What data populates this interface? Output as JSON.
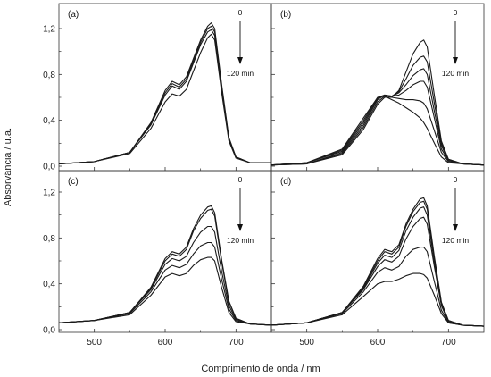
{
  "chart_data": {
    "type": "line",
    "ylabel": "Absorvância / u.a.",
    "xlabel": "Comprimento de onda / nm",
    "xlim": [
      450,
      750
    ],
    "ylim": [
      0,
      1.34
    ],
    "xticks": [
      "500",
      "600",
      "700"
    ],
    "yticks": [
      "0,0",
      "0,4",
      "0,8",
      "1,2"
    ],
    "xtick_values": [
      500,
      600,
      700
    ],
    "ytick_values": [
      0,
      0.4,
      0.8,
      1.2
    ],
    "panels": [
      {
        "label": "(a)",
        "annotation": {
          "start": "0",
          "end": "120 min"
        },
        "series": [
          {
            "x": [
              450,
              500,
              550,
              580,
              600,
              610,
              620,
              630,
              640,
              650,
              660,
              665,
              670,
              680,
              690,
              700,
              720,
              750
            ],
            "y": [
              0.02,
              0.04,
              0.12,
              0.38,
              0.66,
              0.74,
              0.71,
              0.78,
              0.94,
              1.1,
              1.22,
              1.25,
              1.2,
              0.7,
              0.25,
              0.08,
              0.03,
              0.03
            ]
          },
          {
            "x": [
              450,
              500,
              550,
              580,
              600,
              610,
              620,
              630,
              640,
              650,
              660,
              665,
              670,
              680,
              690,
              700,
              720,
              750
            ],
            "y": [
              0.02,
              0.04,
              0.12,
              0.37,
              0.64,
              0.72,
              0.69,
              0.76,
              0.92,
              1.08,
              1.2,
              1.22,
              1.17,
              0.68,
              0.24,
              0.08,
              0.03,
              0.03
            ]
          },
          {
            "x": [
              450,
              500,
              550,
              580,
              600,
              610,
              620,
              630,
              640,
              650,
              660,
              665,
              670,
              680,
              690,
              700,
              720,
              750
            ],
            "y": [
              0.02,
              0.04,
              0.12,
              0.36,
              0.62,
              0.7,
              0.67,
              0.74,
              0.9,
              1.06,
              1.17,
              1.19,
              1.14,
              0.66,
              0.23,
              0.08,
              0.03,
              0.03
            ]
          },
          {
            "x": [
              450,
              500,
              550,
              580,
              600,
              610,
              620,
              630,
              640,
              650,
              660,
              665,
              670,
              680,
              690,
              700,
              720,
              750
            ],
            "y": [
              0.02,
              0.04,
              0.11,
              0.33,
              0.56,
              0.63,
              0.61,
              0.67,
              0.83,
              0.99,
              1.12,
              1.15,
              1.1,
              0.63,
              0.22,
              0.07,
              0.03,
              0.03
            ]
          }
        ]
      },
      {
        "label": "(b)",
        "annotation": {
          "start": "0",
          "end": "120 min"
        },
        "series": [
          {
            "x": [
              450,
              500,
              550,
              580,
              600,
              610,
              620,
              630,
              640,
              650,
              660,
              665,
              670,
              680,
              690,
              700,
              720,
              750
            ],
            "y": [
              0.01,
              0.02,
              0.1,
              0.32,
              0.54,
              0.6,
              0.6,
              0.66,
              0.82,
              0.98,
              1.08,
              1.1,
              1.04,
              0.62,
              0.22,
              0.06,
              0.02,
              0.01
            ]
          },
          {
            "x": [
              450,
              500,
              550,
              580,
              600,
              610,
              620,
              630,
              640,
              650,
              660,
              665,
              670,
              680,
              690,
              700,
              720,
              750
            ],
            "y": [
              0.01,
              0.02,
              0.11,
              0.34,
              0.56,
              0.61,
              0.61,
              0.65,
              0.76,
              0.88,
              0.95,
              0.96,
              0.91,
              0.55,
              0.2,
              0.06,
              0.02,
              0.01
            ]
          },
          {
            "x": [
              450,
              500,
              550,
              580,
              600,
              610,
              620,
              630,
              640,
              650,
              660,
              665,
              670,
              680,
              690,
              700,
              720,
              750
            ],
            "y": [
              0.01,
              0.02,
              0.12,
              0.36,
              0.58,
              0.62,
              0.61,
              0.64,
              0.71,
              0.79,
              0.84,
              0.85,
              0.8,
              0.48,
              0.18,
              0.05,
              0.02,
              0.01
            ]
          },
          {
            "x": [
              450,
              500,
              550,
              580,
              600,
              610,
              620,
              630,
              640,
              650,
              660,
              665,
              670,
              680,
              690,
              700,
              720,
              750
            ],
            "y": [
              0.01,
              0.03,
              0.13,
              0.38,
              0.59,
              0.62,
              0.61,
              0.62,
              0.66,
              0.71,
              0.74,
              0.74,
              0.69,
              0.42,
              0.15,
              0.05,
              0.02,
              0.01
            ]
          },
          {
            "x": [
              450,
              500,
              550,
              580,
              600,
              610,
              620,
              630,
              640,
              650,
              660,
              665,
              670,
              680,
              690,
              700,
              720,
              750
            ],
            "y": [
              0.01,
              0.03,
              0.14,
              0.4,
              0.6,
              0.62,
              0.6,
              0.59,
              0.58,
              0.58,
              0.57,
              0.55,
              0.5,
              0.31,
              0.12,
              0.04,
              0.02,
              0.01
            ]
          },
          {
            "x": [
              450,
              500,
              550,
              580,
              600,
              610,
              620,
              630,
              640,
              650,
              660,
              665,
              670,
              680,
              690,
              700,
              720,
              750
            ],
            "y": [
              0.01,
              0.03,
              0.15,
              0.42,
              0.6,
              0.61,
              0.58,
              0.55,
              0.51,
              0.47,
              0.42,
              0.38,
              0.33,
              0.2,
              0.08,
              0.03,
              0.02,
              0.01
            ]
          }
        ]
      },
      {
        "label": "(c)",
        "annotation": {
          "start": "0",
          "end": "120 min"
        },
        "series": [
          {
            "x": [
              450,
              500,
              550,
              580,
              600,
              610,
              620,
              630,
              640,
              650,
              660,
              665,
              670,
              680,
              690,
              700,
              720,
              750
            ],
            "y": [
              0.06,
              0.08,
              0.15,
              0.37,
              0.62,
              0.68,
              0.66,
              0.72,
              0.88,
              1.0,
              1.07,
              1.08,
              1.02,
              0.6,
              0.25,
              0.1,
              0.05,
              0.04
            ]
          },
          {
            "x": [
              450,
              500,
              550,
              580,
              600,
              610,
              620,
              630,
              640,
              650,
              660,
              665,
              670,
              680,
              690,
              700,
              720,
              750
            ],
            "y": [
              0.06,
              0.08,
              0.15,
              0.36,
              0.6,
              0.66,
              0.64,
              0.7,
              0.86,
              0.97,
              1.04,
              1.05,
              0.99,
              0.58,
              0.24,
              0.1,
              0.05,
              0.04
            ]
          },
          {
            "x": [
              450,
              500,
              550,
              580,
              600,
              610,
              620,
              630,
              640,
              650,
              660,
              665,
              670,
              680,
              690,
              700,
              720,
              750
            ],
            "y": [
              0.06,
              0.08,
              0.15,
              0.35,
              0.57,
              0.62,
              0.6,
              0.64,
              0.76,
              0.85,
              0.9,
              0.9,
              0.85,
              0.5,
              0.21,
              0.09,
              0.05,
              0.04
            ]
          },
          {
            "x": [
              450,
              500,
              550,
              580,
              600,
              610,
              620,
              630,
              640,
              650,
              660,
              665,
              670,
              680,
              690,
              700,
              720,
              750
            ],
            "y": [
              0.06,
              0.08,
              0.14,
              0.33,
              0.52,
              0.56,
              0.54,
              0.57,
              0.66,
              0.73,
              0.76,
              0.76,
              0.72,
              0.43,
              0.18,
              0.08,
              0.05,
              0.04
            ]
          },
          {
            "x": [
              450,
              500,
              550,
              580,
              600,
              610,
              620,
              630,
              640,
              650,
              660,
              665,
              670,
              680,
              690,
              700,
              720,
              750
            ],
            "y": [
              0.06,
              0.08,
              0.13,
              0.3,
              0.46,
              0.49,
              0.47,
              0.49,
              0.56,
              0.61,
              0.63,
              0.63,
              0.6,
              0.36,
              0.15,
              0.07,
              0.05,
              0.04
            ]
          }
        ]
      },
      {
        "label": "(d)",
        "annotation": {
          "start": "0",
          "end": "120 min"
        },
        "series": [
          {
            "x": [
              450,
              500,
              550,
              580,
              600,
              610,
              620,
              630,
              640,
              650,
              660,
              665,
              670,
              680,
              690,
              700,
              720,
              750
            ],
            "y": [
              0.04,
              0.06,
              0.15,
              0.38,
              0.62,
              0.7,
              0.68,
              0.74,
              0.92,
              1.05,
              1.14,
              1.15,
              1.08,
              0.64,
              0.24,
              0.08,
              0.04,
              0.03
            ]
          },
          {
            "x": [
              450,
              500,
              550,
              580,
              600,
              610,
              620,
              630,
              640,
              650,
              660,
              665,
              670,
              680,
              690,
              700,
              720,
              750
            ],
            "y": [
              0.04,
              0.06,
              0.15,
              0.37,
              0.6,
              0.68,
              0.66,
              0.72,
              0.9,
              1.03,
              1.11,
              1.12,
              1.05,
              0.62,
              0.23,
              0.08,
              0.04,
              0.03
            ]
          },
          {
            "x": [
              450,
              500,
              550,
              580,
              600,
              610,
              620,
              630,
              640,
              650,
              660,
              665,
              670,
              680,
              690,
              700,
              720,
              750
            ],
            "y": [
              0.04,
              0.06,
              0.15,
              0.36,
              0.58,
              0.65,
              0.63,
              0.69,
              0.86,
              0.98,
              1.06,
              1.07,
              1.0,
              0.59,
              0.22,
              0.07,
              0.04,
              0.03
            ]
          },
          {
            "x": [
              450,
              500,
              550,
              580,
              600,
              610,
              620,
              630,
              640,
              650,
              660,
              665,
              670,
              680,
              690,
              700,
              720,
              750
            ],
            "y": [
              0.04,
              0.06,
              0.15,
              0.35,
              0.55,
              0.61,
              0.59,
              0.64,
              0.79,
              0.9,
              0.97,
              0.98,
              0.92,
              0.55,
              0.21,
              0.07,
              0.04,
              0.03
            ]
          },
          {
            "x": [
              450,
              500,
              550,
              580,
              600,
              610,
              620,
              630,
              640,
              650,
              660,
              665,
              670,
              680,
              690,
              700,
              720,
              750
            ],
            "y": [
              0.04,
              0.06,
              0.14,
              0.33,
              0.5,
              0.54,
              0.52,
              0.55,
              0.64,
              0.7,
              0.72,
              0.72,
              0.68,
              0.42,
              0.17,
              0.06,
              0.04,
              0.03
            ]
          },
          {
            "x": [
              450,
              500,
              550,
              580,
              600,
              610,
              620,
              630,
              640,
              650,
              660,
              665,
              670,
              680,
              690,
              700,
              720,
              750
            ],
            "y": [
              0.04,
              0.06,
              0.13,
              0.29,
              0.4,
              0.42,
              0.42,
              0.44,
              0.47,
              0.49,
              0.49,
              0.48,
              0.45,
              0.3,
              0.14,
              0.06,
              0.04,
              0.03
            ]
          }
        ]
      }
    ]
  }
}
